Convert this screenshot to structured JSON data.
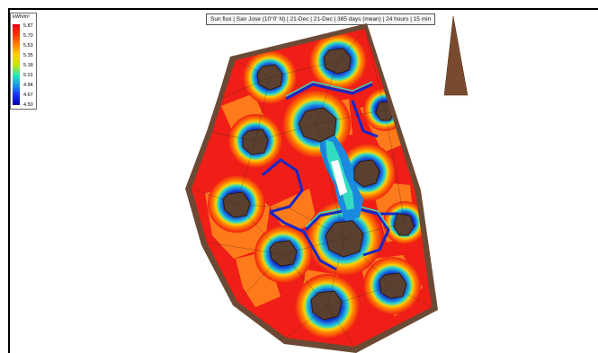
{
  "viewport": {
    "title": "Sun flux | San Jose (10°0' N) | 21-Dec | 21-Dec | 365 days (mean) | 24 hours | 15 min"
  },
  "legend": {
    "unit": "kWh/m²",
    "labels": [
      "5.87",
      "5.70",
      "5.53",
      "5.35",
      "5.18",
      "5.01",
      "4.84",
      "4.67",
      "4.50"
    ],
    "colors": [
      "#e6001a",
      "#ff3300",
      "#ff8000",
      "#ffd000",
      "#c8e600",
      "#33e6b3",
      "#1a9ae6",
      "#1a33e6",
      "#0000a0"
    ]
  },
  "colors": {
    "frame": "#6b4a35",
    "hot": "#f01e16",
    "warm": "#ff7a1a",
    "cold": "#1428c8",
    "opening": "#5a4030"
  }
}
